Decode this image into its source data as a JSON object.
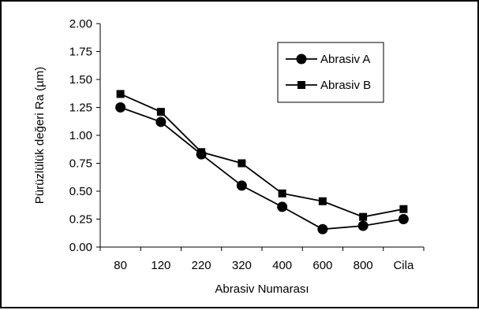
{
  "chart_data": {
    "type": "line",
    "title": "",
    "xlabel": "Abrasiv Numarası",
    "ylabel": "Pürüzlülük değeri Ra (µm)",
    "ylim": [
      0,
      2
    ],
    "yticks": [
      "0.00",
      "0.25",
      "0.50",
      "0.75",
      "1.00",
      "1.25",
      "1.50",
      "1.75",
      "2.00"
    ],
    "categories": [
      "80",
      "120",
      "220",
      "320",
      "400",
      "600",
      "800",
      "Cila"
    ],
    "grid": false,
    "legend_position": "top-right",
    "series": [
      {
        "name": "Abrasiv A",
        "marker": "circle",
        "color": "#000000",
        "values": [
          1.25,
          1.12,
          0.83,
          0.55,
          0.36,
          0.16,
          0.19,
          0.25
        ]
      },
      {
        "name": "Abrasiv B",
        "marker": "square",
        "color": "#000000",
        "values": [
          1.37,
          1.21,
          0.85,
          0.75,
          0.48,
          0.41,
          0.27,
          0.34
        ]
      }
    ]
  }
}
